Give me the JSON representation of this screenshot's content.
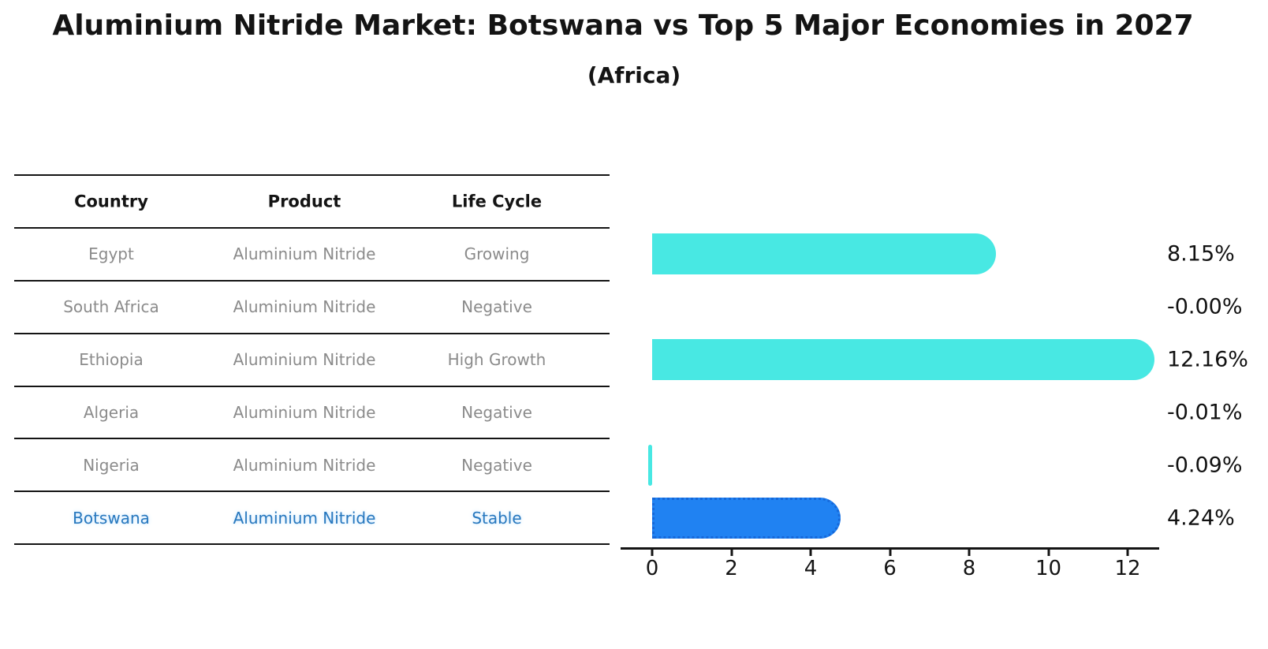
{
  "chart_data": {
    "type": "bar",
    "orientation": "horizontal",
    "title": "Aluminium Nitride Market: Botswana vs Top 5 Major Economies in 2027",
    "subtitle": "(Africa)",
    "categories": [
      "Egypt",
      "South Africa",
      "Ethiopia",
      "Algeria",
      "Nigeria",
      "Botswana"
    ],
    "values": [
      8.15,
      -0.0,
      12.16,
      -0.01,
      -0.09,
      4.24
    ],
    "value_labels": [
      "8.15%",
      "-0.00%",
      "12.16%",
      "-0.01%",
      "-0.09%",
      "4.24%"
    ],
    "x_ticks": [
      "0",
      "2",
      "4",
      "6",
      "8",
      "10",
      "12"
    ],
    "x_tick_values": [
      0,
      2,
      4,
      6,
      8,
      10,
      12
    ],
    "xlim": [
      -0.8,
      12.8
    ],
    "xlabel": "",
    "ylabel": "",
    "grid": false,
    "legend": null,
    "highlight_index": 5,
    "colors": {
      "bar_default": "#48e8e3",
      "bar_highlight": "#2082f2",
      "bar_highlight_border": "#1668d9"
    }
  },
  "table": {
    "headers": [
      "Country",
      "Product",
      "Life Cycle"
    ],
    "rows": [
      {
        "country": "Egypt",
        "product": "Aluminium Nitride",
        "life_cycle": "Growing",
        "highlight": false
      },
      {
        "country": "South Africa",
        "product": "Aluminium Nitride",
        "life_cycle": "Negative",
        "highlight": false
      },
      {
        "country": "Ethiopia",
        "product": "Aluminium Nitride",
        "life_cycle": "High Growth",
        "highlight": false
      },
      {
        "country": "Algeria",
        "product": "Aluminium Nitride",
        "life_cycle": "Negative",
        "highlight": false
      },
      {
        "country": "Nigeria",
        "product": "Aluminium Nitride",
        "life_cycle": "Negative",
        "highlight": false
      },
      {
        "country": "Botswana",
        "product": "Aluminium Nitride",
        "life_cycle": "Stable",
        "highlight": true
      }
    ]
  },
  "colors": {
    "text": "#141414",
    "muted_text": "#8b8b8b",
    "highlight_text": "#2878be",
    "background": "#ffffff"
  }
}
